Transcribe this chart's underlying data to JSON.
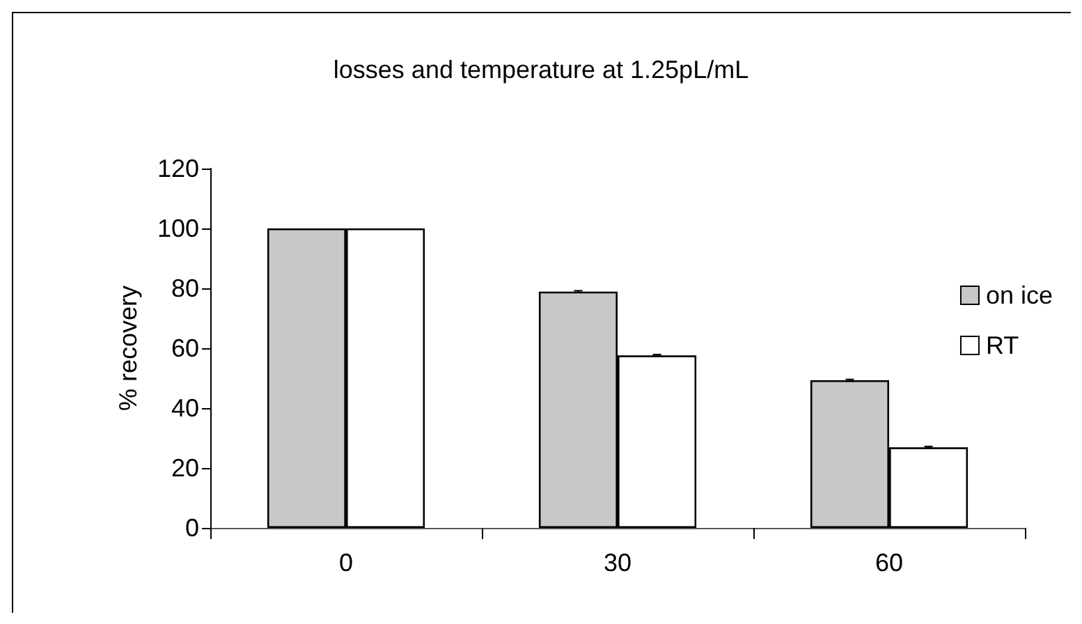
{
  "chart_data": {
    "type": "bar",
    "title": "losses and temperature at 1.25pL/mL",
    "ylabel": "% recovery",
    "categories": [
      "0",
      "30",
      "60"
    ],
    "series": [
      {
        "name": "on ice",
        "color": "#c8c8c8",
        "values": [
          100,
          78.9,
          49.3
        ],
        "errors": [
          null,
          0.3,
          0.3
        ]
      },
      {
        "name": "RT",
        "color": "#ffffff",
        "values": [
          100,
          57.6,
          26.9
        ],
        "errors": [
          null,
          0.3,
          0.3
        ]
      }
    ],
    "ylim": [
      0,
      120
    ],
    "yticks": [
      0,
      20,
      40,
      60,
      80,
      100,
      120
    ],
    "grid": false,
    "legend": "right"
  }
}
